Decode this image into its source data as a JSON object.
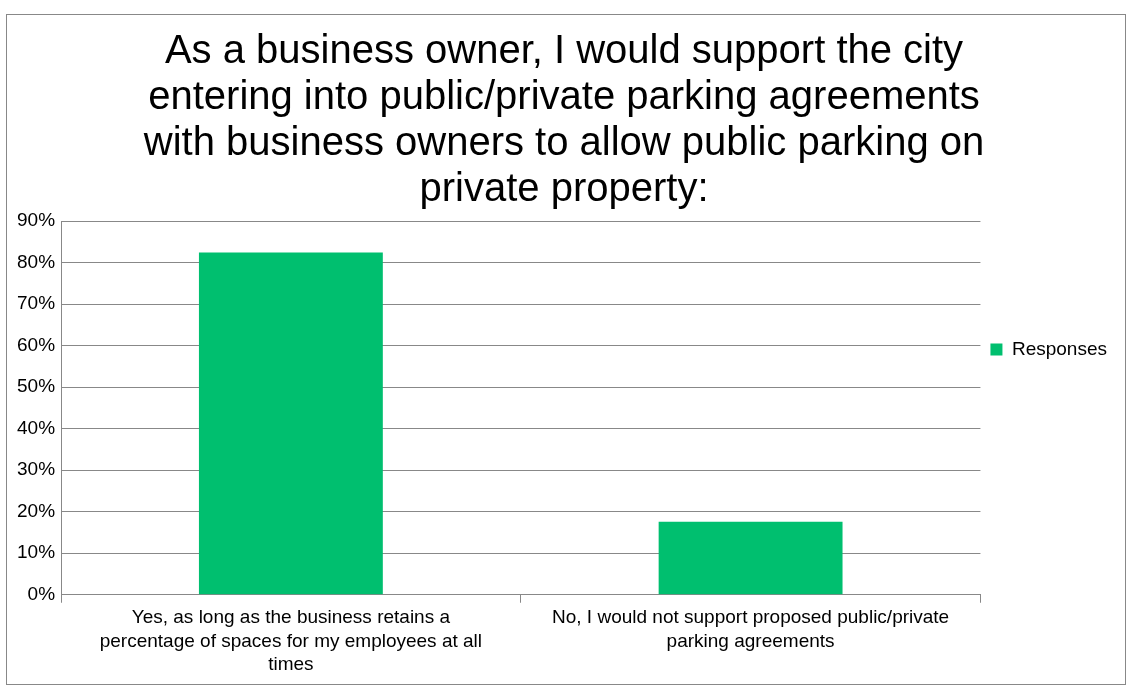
{
  "chart_data": {
    "type": "bar",
    "title": "As a business owner, I would support the city entering into public/private parking agreements with business owners to allow public parking on private property:",
    "categories": [
      "Yes, as long as the business retains a percentage of spaces for my employees at all times",
      "No, I would not support proposed public/private parking agreements"
    ],
    "series": [
      {
        "name": "Responses",
        "color": "#00bf6f",
        "values": [
          82.4,
          17.6
        ]
      }
    ],
    "ylim": [
      0,
      90
    ],
    "yticks": [
      {
        "value": 0,
        "label": "0%"
      },
      {
        "value": 10,
        "label": "10%"
      },
      {
        "value": 20,
        "label": "20%"
      },
      {
        "value": 30,
        "label": "30%"
      },
      {
        "value": 40,
        "label": "40%"
      },
      {
        "value": 50,
        "label": "50%"
      },
      {
        "value": 60,
        "label": "60%"
      },
      {
        "value": 70,
        "label": "70%"
      },
      {
        "value": 80,
        "label": "80%"
      },
      {
        "value": 90,
        "label": "90%"
      }
    ],
    "grid": "y",
    "legend": "right"
  }
}
